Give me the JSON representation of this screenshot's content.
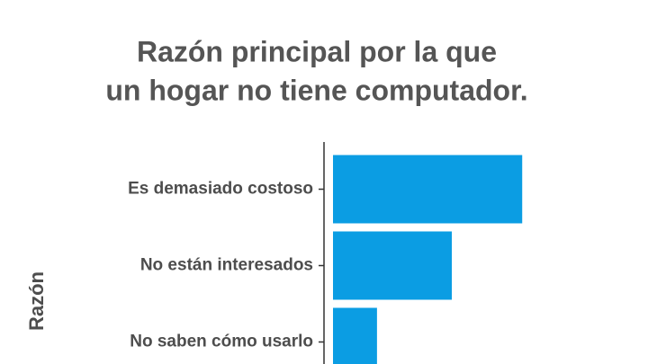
{
  "chart_data": {
    "type": "barh",
    "title": [
      "Razón principal por la que",
      "un hogar no tiene computador."
    ],
    "y_label": "Razón",
    "categories": [
      "Es demasiado costoso",
      "No están interesados",
      "No saben cómo usarlo"
    ],
    "values": [
      43,
      27,
      10
    ],
    "color": "#0b9de3",
    "xlim": [
      0,
      45
    ]
  }
}
